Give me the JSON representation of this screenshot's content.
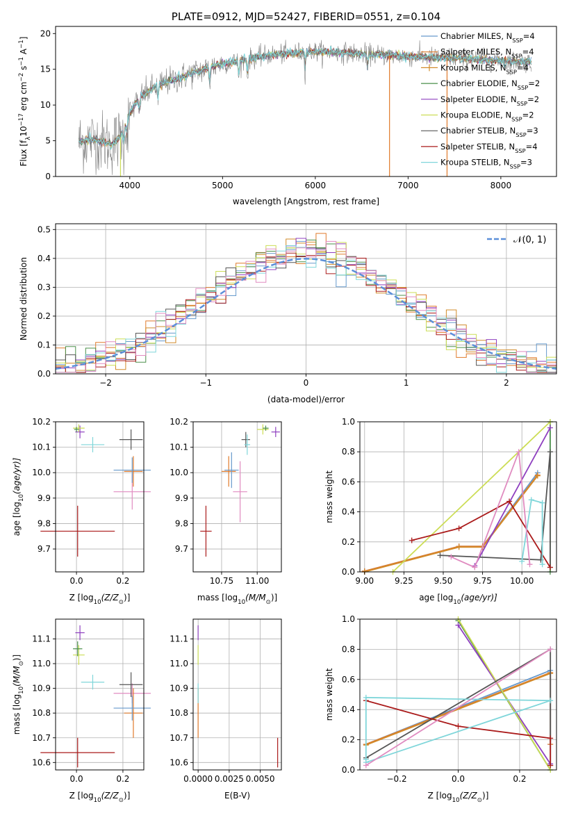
{
  "chart_data": [
    {
      "id": "spectrum",
      "type": "line",
      "title": "PLATE=0912, MJD=52427, FIBERID=0551, z=0.104",
      "xlabel": "wavelength [Angstrom, rest frame]",
      "ylabel": "Flux [f",
      "ylabel_sub": "λ",
      "ylabel_rest": "10",
      "ylabel_exp": "−17",
      "ylabel_tail": " erg cm",
      "ylabel_exp2": "−2",
      "ylabel_tail2": " s",
      "ylabel_exp3": "−1",
      "ylabel_tail3": " A",
      "ylabel_exp4": "−1",
      "ylabel_end": "]",
      "xlim": [
        3200,
        8600
      ],
      "ylim": [
        0,
        21
      ],
      "xticks": [
        4000,
        5000,
        6000,
        7000,
        8000
      ],
      "yticks": [
        0,
        5,
        10,
        15,
        20
      ],
      "grid": false,
      "legend_position": "top-right",
      "legend": [
        {
          "label": "Chabrier MILES, N",
          "sub": "SSP",
          "val": "=4",
          "color": "#6699cc"
        },
        {
          "label": "Salpeter MILES, N",
          "sub": "SSP",
          "val": "=4",
          "color": "#e07a2a"
        },
        {
          "label": "Kroupa MILES, N",
          "sub": "SSP",
          "val": "=4",
          "color": "#d18b2a"
        },
        {
          "label": "Chabrier ELODIE, N",
          "sub": "SSP",
          "val": "=2",
          "color": "#4a8f4a"
        },
        {
          "label": "Salpeter ELODIE, N",
          "sub": "SSP",
          "val": "=2",
          "color": "#8e3fbf"
        },
        {
          "label": "Kroupa ELODIE, N",
          "sub": "SSP",
          "val": "=2",
          "color": "#ccdd55"
        },
        {
          "label": "Chabrier STELIB, N",
          "sub": "SSP",
          "val": "=3",
          "color": "#555555"
        },
        {
          "label": "Salpeter STELIB, N",
          "sub": "SSP",
          "val": "=4",
          "color": "#aa1a1a"
        },
        {
          "label": "Kroupa STELIB, N",
          "sub": "SSP",
          "val": "=3",
          "color": "#7fd6da"
        }
      ],
      "continuum": {
        "x": [
          3450,
          3600,
          3800,
          3900,
          4000,
          4100,
          4300,
          4500,
          4700,
          5000,
          5200,
          5500,
          6000,
          6500,
          7000,
          7500,
          8000,
          8330
        ],
        "y": [
          4.8,
          5.2,
          4.5,
          5.5,
          8.8,
          11.0,
          12.8,
          13.6,
          14.6,
          15.8,
          16.2,
          17.0,
          17.5,
          17.2,
          16.8,
          16.6,
          16.2,
          16.0
        ]
      },
      "data_color": "#808080",
      "drops": [
        {
          "x": 3900,
          "color": "#ccdd55"
        },
        {
          "x": 6800,
          "color": "#e07a2a"
        },
        {
          "x": 7420,
          "color": "#e07a2a"
        }
      ]
    },
    {
      "id": "residuals",
      "type": "histogram",
      "xlabel": "(data-model)/error",
      "ylabel": "Normed distribution",
      "xlim": [
        -2.5,
        2.5
      ],
      "ylim": [
        0,
        0.52
      ],
      "xticks": [
        -2,
        -1,
        0,
        1,
        2
      ],
      "xtick_labels": [
        "−2",
        "−1",
        "0",
        "1",
        "2"
      ],
      "yticks": [
        0.0,
        0.1,
        0.2,
        0.3,
        0.4,
        0.5
      ],
      "ytick_labels": [
        "0.0",
        "0.1",
        "0.2",
        "0.3",
        "0.4",
        "0.5"
      ],
      "grid": true,
      "legend_label": "𝒩(0, 1)",
      "normal_color": "#5b8fd9",
      "bin_width": 0.1,
      "series_colors": [
        "#6699cc",
        "#e07a2a",
        "#d18b2a",
        "#4a8f4a",
        "#8e3fbf",
        "#ccdd55",
        "#555555",
        "#aa1a1a",
        "#7fd6da",
        "#e08bc0"
      ]
    },
    {
      "id": "age-vs-z",
      "type": "errorbar",
      "xlabel": "Z [log",
      "xlabel_sub": "10",
      "xlabel_rest": "(Z/Z",
      "xlabel_sub2": "⊙",
      "xlabel_end": ")]",
      "ylabel": "age  [log",
      "ylabel_sub": "10",
      "ylabel_rest": "(age/yr)]",
      "xlim": [
        -0.09,
        0.29
      ],
      "ylim": [
        9.61,
        10.2
      ],
      "xticks": [
        0.0,
        0.2
      ],
      "xtick_labels": [
        "0.0",
        "0.2"
      ],
      "yticks": [
        9.7,
        9.8,
        9.9,
        10.0,
        10.1,
        10.2
      ],
      "ytick_labels": [
        "9.7",
        "9.8",
        "9.9",
        "10.0",
        "10.1",
        "10.2"
      ],
      "points": [
        {
          "x": 0.005,
          "y": 9.77,
          "xerr": 0.16,
          "yerr": 0.1,
          "color": "#aa1a1a"
        },
        {
          "x": 0.24,
          "y": 9.925,
          "xerr": 0.08,
          "yerr": 0.07,
          "color": "#e08bc0"
        },
        {
          "x": 0.245,
          "y": 10.005,
          "xerr": 0.04,
          "yerr": 0.06,
          "color": "#e07a2a"
        },
        {
          "x": 0.24,
          "y": 10.01,
          "xerr": 0.08,
          "yerr": 0.05,
          "color": "#6699cc"
        },
        {
          "x": 0.235,
          "y": 10.13,
          "xerr": 0.05,
          "yerr": 0.04,
          "color": "#555555"
        },
        {
          "x": 0.07,
          "y": 10.11,
          "xerr": 0.05,
          "yerr": 0.03,
          "color": "#7fd6da"
        },
        {
          "x": 0.015,
          "y": 10.16,
          "xerr": 0.02,
          "yerr": 0.025,
          "color": "#8e3fbf"
        },
        {
          "x": 0.01,
          "y": 10.175,
          "xerr": 0.025,
          "yerr": 0.015,
          "color": "#ccdd55"
        },
        {
          "x": 0.0,
          "y": 10.17,
          "xerr": 0.01,
          "yerr": 0.01,
          "color": "#4a8f4a"
        }
      ]
    },
    {
      "id": "age-vs-mass",
      "type": "errorbar",
      "xlabel": "mass [log",
      "xlabel_sub": "10",
      "xlabel_rest": "(M/M",
      "xlabel_sub2": "⊙",
      "xlabel_end": ")]",
      "xlim": [
        10.55,
        11.17
      ],
      "ylim": [
        9.61,
        10.2
      ],
      "xticks": [
        10.75,
        11.0
      ],
      "xtick_labels": [
        "10.75",
        "11.00"
      ],
      "yticks": [
        9.7,
        9.8,
        9.9,
        10.0,
        10.1,
        10.2
      ],
      "ytick_labels": [
        "9.7",
        "9.8",
        "9.9",
        "10.0",
        "10.1",
        "10.2"
      ],
      "points": [
        {
          "x": 10.64,
          "y": 9.77,
          "xerr": 0.04,
          "yerr": 0.1,
          "color": "#aa1a1a"
        },
        {
          "x": 10.88,
          "y": 9.925,
          "xerr": 0.05,
          "yerr": 0.12,
          "color": "#e08bc0"
        },
        {
          "x": 10.8,
          "y": 10.005,
          "xerr": 0.05,
          "yerr": 0.06,
          "color": "#e07a2a"
        },
        {
          "x": 10.82,
          "y": 10.01,
          "xerr": 0.05,
          "yerr": 0.07,
          "color": "#6699cc"
        },
        {
          "x": 10.92,
          "y": 10.13,
          "xerr": 0.03,
          "yerr": 0.03,
          "color": "#555555"
        },
        {
          "x": 10.93,
          "y": 10.11,
          "xerr": 0.02,
          "yerr": 0.04,
          "color": "#7fd6da"
        },
        {
          "x": 11.13,
          "y": 10.16,
          "xerr": 0.03,
          "yerr": 0.02,
          "color": "#8e3fbf"
        },
        {
          "x": 11.04,
          "y": 10.17,
          "xerr": 0.04,
          "yerr": 0.02,
          "color": "#ccdd55"
        },
        {
          "x": 11.06,
          "y": 10.175,
          "xerr": 0.02,
          "yerr": 0.01,
          "color": "#4a8f4a"
        }
      ]
    },
    {
      "id": "weight-vs-age",
      "type": "line",
      "xlabel": "age  [log",
      "xlabel_sub": "10",
      "xlabel_rest": "(age/yr)]",
      "ylabel": "mass weight",
      "xlim": [
        8.97,
        10.22
      ],
      "ylim": [
        0,
        1
      ],
      "xticks": [
        9.0,
        9.25,
        9.5,
        9.75,
        10.0
      ],
      "xtick_labels": [
        "9.00",
        "9.25",
        "9.50",
        "9.75",
        "10.00"
      ],
      "yticks": [
        0.0,
        0.2,
        0.4,
        0.6,
        0.8,
        1.0
      ],
      "ytick_labels": [
        "0.0",
        "0.2",
        "0.4",
        "0.6",
        "0.8",
        "1.0"
      ],
      "grid": true,
      "series": [
        {
          "color": "#6699cc",
          "x": [
            9.0,
            9.6,
            9.75,
            10.1
          ],
          "y": [
            0.005,
            0.17,
            0.17,
            0.66
          ]
        },
        {
          "color": "#e07a2a",
          "x": [
            9.0,
            9.6,
            9.75,
            10.1
          ],
          "y": [
            0.005,
            0.17,
            0.17,
            0.645
          ]
        },
        {
          "color": "#d18b2a",
          "x": [
            9.0,
            9.6,
            9.75,
            10.1
          ],
          "y": [
            0.0,
            0.165,
            0.165,
            0.64
          ]
        },
        {
          "color": "#4a8f4a",
          "x": [
            10.18,
            10.18
          ],
          "y": [
            0.0,
            1.0
          ]
        },
        {
          "color": "#8e3fbf",
          "x": [
            9.7,
            10.18
          ],
          "y": [
            0.04,
            0.96
          ]
        },
        {
          "color": "#ccdd55",
          "x": [
            9.18,
            10.18
          ],
          "y": [
            0.0,
            1.0
          ]
        },
        {
          "color": "#555555",
          "x": [
            9.48,
            10.12,
            10.18,
            10.18
          ],
          "y": [
            0.11,
            0.08,
            0.8,
            0.03
          ]
        },
        {
          "color": "#aa1a1a",
          "x": [
            9.3,
            9.6,
            9.92,
            10.18
          ],
          "y": [
            0.21,
            0.29,
            0.47,
            0.03
          ]
        },
        {
          "color": "#7fd6da",
          "x": [
            10.0,
            10.06,
            10.13,
            10.13
          ],
          "y": [
            0.07,
            0.48,
            0.46,
            0.05
          ]
        },
        {
          "color": "#e08bc0",
          "x": [
            9.55,
            9.7,
            9.98,
            10.05
          ],
          "y": [
            0.1,
            0.03,
            0.8,
            0.05
          ]
        }
      ]
    },
    {
      "id": "mass-vs-z",
      "type": "errorbar",
      "xlabel": "Z [log",
      "xlabel_sub": "10",
      "xlabel_rest": "(Z/Z",
      "xlabel_sub2": "⊙",
      "xlabel_end": ")]",
      "ylabel": "mass [log",
      "ylabel_sub": "10",
      "ylabel_rest": "(M/M",
      "ylabel_sub2": "⊙",
      "ylabel_end": ")]",
      "xlim": [
        -0.09,
        0.29
      ],
      "ylim": [
        10.57,
        11.18
      ],
      "xticks": [
        0.0,
        0.2
      ],
      "xtick_labels": [
        "0.0",
        "0.2"
      ],
      "yticks": [
        10.6,
        10.7,
        10.8,
        10.9,
        11.0,
        11.1
      ],
      "ytick_labels": [
        "10.6",
        "10.7",
        "10.8",
        "10.9",
        "11.0",
        "11.1"
      ],
      "points": [
        {
          "x": 0.005,
          "y": 10.64,
          "xerr": 0.16,
          "yerr": 0.06,
          "color": "#aa1a1a"
        },
        {
          "x": 0.24,
          "y": 10.88,
          "xerr": 0.08,
          "yerr": 0.04,
          "color": "#e08bc0"
        },
        {
          "x": 0.245,
          "y": 10.8,
          "xerr": 0.04,
          "yerr": 0.1,
          "color": "#e07a2a"
        },
        {
          "x": 0.24,
          "y": 10.82,
          "xerr": 0.08,
          "yerr": 0.05,
          "color": "#6699cc"
        },
        {
          "x": 0.235,
          "y": 10.915,
          "xerr": 0.05,
          "yerr": 0.05,
          "color": "#555555"
        },
        {
          "x": 0.07,
          "y": 10.925,
          "xerr": 0.05,
          "yerr": 0.03,
          "color": "#7fd6da"
        },
        {
          "x": 0.015,
          "y": 11.125,
          "xerr": 0.02,
          "yerr": 0.03,
          "color": "#8e3fbf"
        },
        {
          "x": 0.01,
          "y": 11.035,
          "xerr": 0.025,
          "yerr": 0.04,
          "color": "#ccdd55"
        },
        {
          "x": 0.005,
          "y": 11.06,
          "xerr": 0.02,
          "yerr": 0.03,
          "color": "#4a8f4a"
        }
      ]
    },
    {
      "id": "mass-vs-ebv",
      "type": "errorbar",
      "xlabel": "E(B-V)",
      "xlim": [
        -0.0004,
        0.0067
      ],
      "ylim": [
        10.57,
        11.18
      ],
      "xticks": [
        0.0,
        0.0025,
        0.005
      ],
      "xtick_labels": [
        "0.0000",
        "0.0025",
        "0.0050"
      ],
      "yticks": [
        10.6,
        10.7,
        10.8,
        10.9,
        11.0,
        11.1
      ],
      "ytick_labels": [
        "10.6",
        "10.7",
        "10.8",
        "10.9",
        "11.0",
        "11.1"
      ],
      "points": [
        {
          "x": 0.0064,
          "y": 10.64,
          "xerr": 0.0,
          "yerr": 0.06,
          "color": "#aa1a1a"
        },
        {
          "x": 0.0,
          "y": 10.8,
          "xerr": 0.0,
          "yerr": 0.1,
          "color": "#e07a2a"
        },
        {
          "x": 0.0,
          "y": 10.88,
          "xerr": 0.0,
          "yerr": 0.04,
          "color": "#7fd6da"
        },
        {
          "x": 0.0,
          "y": 11.125,
          "xerr": 0.0,
          "yerr": 0.03,
          "color": "#8e3fbf"
        },
        {
          "x": 0.0,
          "y": 11.035,
          "xerr": 0.0,
          "yerr": 0.04,
          "color": "#ccdd55"
        }
      ]
    },
    {
      "id": "weight-vs-z",
      "type": "line",
      "xlabel": "Z [log",
      "xlabel_sub": "10",
      "xlabel_rest": "(Z/Z",
      "xlabel_sub2": "⊙",
      "xlabel_end": ")]",
      "ylabel": "mass weight",
      "xlim": [
        -0.32,
        0.32
      ],
      "ylim": [
        0,
        1
      ],
      "xticks": [
        -0.2,
        0.0,
        0.2
      ],
      "xtick_labels": [
        "−0.2",
        "0.0",
        "0.2"
      ],
      "yticks": [
        0.0,
        0.2,
        0.4,
        0.6,
        0.8,
        1.0
      ],
      "ytick_labels": [
        "0.0",
        "0.2",
        "0.4",
        "0.6",
        "0.8",
        "1.0"
      ],
      "grid": true,
      "series": [
        {
          "color": "#6699cc",
          "x": [
            -0.3,
            0.3,
            0.3
          ],
          "y": [
            0.17,
            0.66,
            0.17
          ]
        },
        {
          "color": "#e07a2a",
          "x": [
            -0.3,
            0.3,
            0.3
          ],
          "y": [
            0.17,
            0.645,
            0.17
          ]
        },
        {
          "color": "#d18b2a",
          "x": [
            -0.3,
            0.3
          ],
          "y": [
            0.165,
            0.64
          ]
        },
        {
          "color": "#4a8f4a",
          "x": [
            0.0,
            0.3
          ],
          "y": [
            0.99,
            0.0
          ]
        },
        {
          "color": "#8e3fbf",
          "x": [
            0.0,
            0.3
          ],
          "y": [
            0.96,
            0.04
          ]
        },
        {
          "color": "#ccdd55",
          "x": [
            0.0,
            0.3
          ],
          "y": [
            1.0,
            0.0
          ]
        },
        {
          "color": "#555555",
          "x": [
            -0.3,
            0.3,
            0.3
          ],
          "y": [
            0.08,
            0.8,
            0.03
          ]
        },
        {
          "color": "#aa1a1a",
          "x": [
            -0.3,
            0.0,
            0.3,
            0.3
          ],
          "y": [
            0.46,
            0.29,
            0.21,
            0.03
          ]
        },
        {
          "color": "#7fd6da",
          "x": [
            -0.3,
            0.3,
            -0.3,
            -0.3
          ],
          "y": [
            0.05,
            0.46,
            0.48,
            0.07
          ]
        },
        {
          "color": "#e08bc0",
          "x": [
            -0.3,
            0.3
          ],
          "y": [
            0.03,
            0.8
          ]
        }
      ]
    }
  ]
}
